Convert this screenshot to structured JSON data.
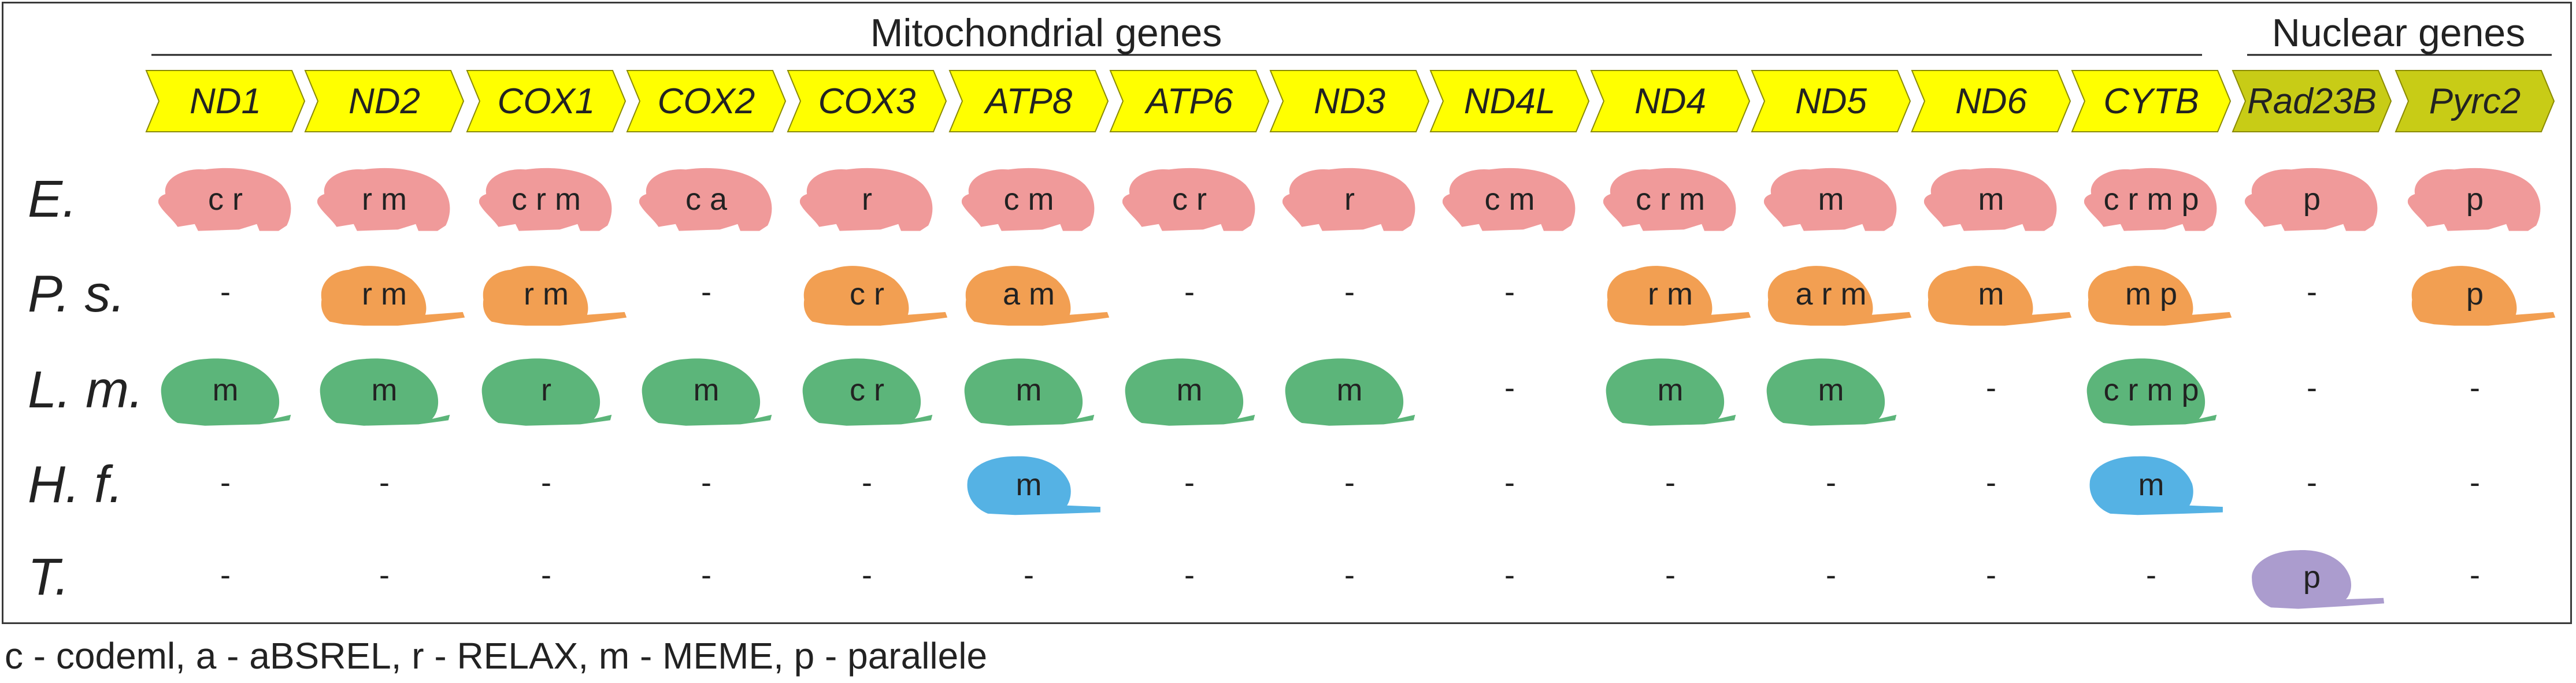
{
  "headers": {
    "mito": "Mitochondrial genes",
    "nuclear": "Nuclear genes"
  },
  "genes": [
    {
      "name": "ND1",
      "type": "mito"
    },
    {
      "name": "ND2",
      "type": "mito"
    },
    {
      "name": "COX1",
      "type": "mito"
    },
    {
      "name": "COX2",
      "type": "mito"
    },
    {
      "name": "COX3",
      "type": "mito"
    },
    {
      "name": "ATP8",
      "type": "mito"
    },
    {
      "name": "ATP6",
      "type": "mito"
    },
    {
      "name": "ND3",
      "type": "mito"
    },
    {
      "name": "ND4L",
      "type": "mito"
    },
    {
      "name": "ND4",
      "type": "mito"
    },
    {
      "name": "ND5",
      "type": "mito"
    },
    {
      "name": "ND6",
      "type": "mito"
    },
    {
      "name": "CYTB",
      "type": "mito"
    },
    {
      "name": "Rad23B",
      "type": "nuclear"
    },
    {
      "name": "Pyrc2",
      "type": "nuclear"
    }
  ],
  "species": [
    {
      "label": "E.",
      "color": "#f09a9a",
      "shape": "mole-rat",
      "cells": [
        "c r",
        "r m",
        "c r m",
        "c a",
        "r",
        "c m",
        "c r",
        "r",
        "c m",
        "c r m",
        "m",
        "m",
        "c r m p",
        "p",
        "p"
      ]
    },
    {
      "label": "P. s.",
      "color": "#f29f52",
      "shape": "long-tail-rodent",
      "cells": [
        "-",
        "r m",
        "r m",
        "-",
        "c r",
        "a m",
        "-",
        "-",
        "-",
        "r m",
        "a r m",
        "m",
        "m p",
        "-",
        "p"
      ]
    },
    {
      "label": "L. m.",
      "color": "#5cb57a",
      "shape": "round-rodent",
      "cells": [
        "m",
        "m",
        "r",
        "m",
        "c r",
        "m",
        "m",
        "m",
        "-",
        "m",
        "m",
        "-",
        "c r m p",
        "-",
        "-"
      ]
    },
    {
      "label": "H. f.",
      "color": "#55b2e4",
      "shape": "mole-vole",
      "cells": [
        "-",
        "-",
        "-",
        "-",
        "-",
        "m",
        "-",
        "-",
        "-",
        "-",
        "-",
        "-",
        "m",
        "-",
        "-"
      ]
    },
    {
      "label": "T.",
      "color": "#ab9cce",
      "shape": "vole",
      "cells": [
        "-",
        "-",
        "-",
        "-",
        "-",
        "-",
        "-",
        "-",
        "-",
        "-",
        "-",
        "-",
        "-",
        "p",
        "-"
      ]
    }
  ],
  "gene_colors": {
    "mito": "#ffff00",
    "nuclear": "#c8cc16"
  },
  "legend_text": "c - codeml, a - aBSREL, r - RELAX, m - MEME, p - parallele"
}
